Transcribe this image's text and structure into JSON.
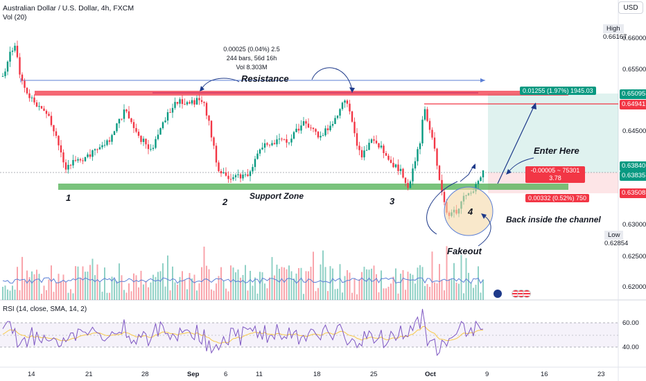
{
  "header": {
    "title": "Australian Dollar / U.S. Dollar, 4h, FXCM",
    "volume_label": "Vol (20)",
    "rsi_label": "RSI (14, close, SMA, 14, 2)",
    "currency": "USD"
  },
  "price_axis": {
    "ticks": [
      "0.66000",
      "0.65500",
      "0.64500",
      "0.63000",
      "0.62500",
      "0.62000"
    ],
    "high_label": "High",
    "high_value": "0.66167",
    "low_label": "Low",
    "low_value": "0.62854",
    "tags": [
      {
        "value": "0.65095",
        "color": "#089981"
      },
      {
        "value": "0.64941",
        "color": "#f23645"
      },
      {
        "value": "0.63840",
        "color": "#089981"
      },
      {
        "value": "0.63835",
        "color": "#089981"
      },
      {
        "value": "0.63508",
        "color": "#f23645"
      }
    ]
  },
  "rsi_axis": {
    "ticks": [
      "60.00",
      "40.00"
    ]
  },
  "time_axis": {
    "labels": [
      "14",
      "21",
      "28",
      "Sep",
      "6",
      "11",
      "18",
      "25",
      "Oct",
      "9",
      "16",
      "23"
    ]
  },
  "measure_tool": {
    "line1": "0.00025 (0.04%) 2.5",
    "line2": "244 bars, 56d 16h",
    "line3": "Vol 8.303M"
  },
  "position_tool": {
    "target_label": "0.01255 (1.97%) 1945.03",
    "entry_label_line1": "-0.00005 ~ 75301",
    "entry_label_line2": "3.78",
    "stop_label": "0.00332 (0.52%) 750"
  },
  "annotations": {
    "resistance": "Resistance",
    "support": "Support Zone",
    "enter": "Enter Here",
    "back_inside": "Back inside the channel",
    "fakeout": "Fakeout",
    "touch_numbers": [
      "1",
      "2",
      "3",
      "4"
    ]
  },
  "colors": {
    "up": "#089981",
    "down": "#f23645",
    "resistance": "#f23645",
    "support": "#4caf50",
    "rsi_line": "#7e57c2",
    "rsi_ma": "#f7c948"
  },
  "icons": [
    "australia-flag-icon",
    "us-flag-icon"
  ]
}
